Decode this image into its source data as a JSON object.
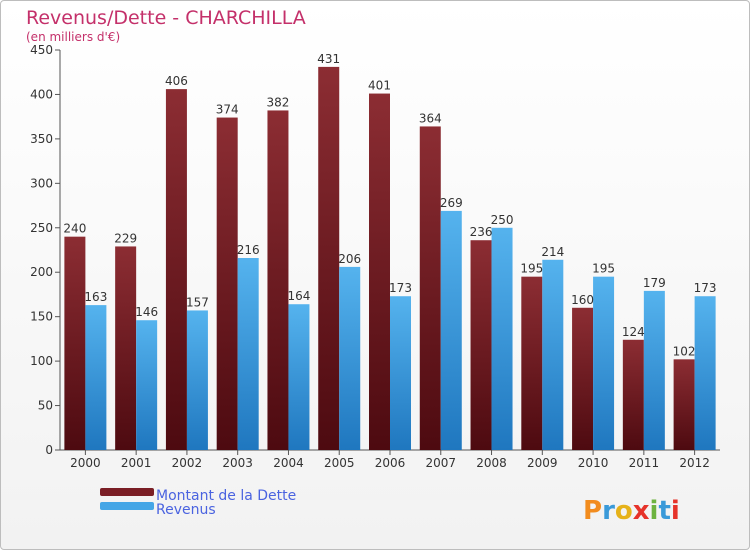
{
  "chart_data": {
    "type": "bar",
    "title": "Revenus/Dette - CHARCHILLA",
    "subtitle": "(en milliers d'€)",
    "categories": [
      "2000",
      "2001",
      "2002",
      "2003",
      "2004",
      "2005",
      "2006",
      "2007",
      "2008",
      "2009",
      "2010",
      "2011",
      "2012"
    ],
    "series": [
      {
        "name": "Montant de la Dette",
        "color": "#7a1e25",
        "values": [
          240,
          229,
          406,
          374,
          382,
          431,
          401,
          364,
          236,
          195,
          160,
          124,
          102
        ]
      },
      {
        "name": "Revenus",
        "color": "#45a6e6",
        "values": [
          163,
          146,
          157,
          216,
          164,
          206,
          173,
          269,
          250,
          214,
          195,
          179,
          173
        ]
      }
    ],
    "ylim": [
      0,
      450
    ],
    "yticks": [
      0,
      50,
      100,
      150,
      200,
      250,
      300,
      350,
      400,
      450
    ],
    "grid": false,
    "legend_position": "bottom-left"
  },
  "colors": {
    "title": "#c4306a",
    "legend_text": "#4a63e0",
    "axis": "#555555"
  },
  "brand": {
    "logo_text": "Proxiti"
  }
}
